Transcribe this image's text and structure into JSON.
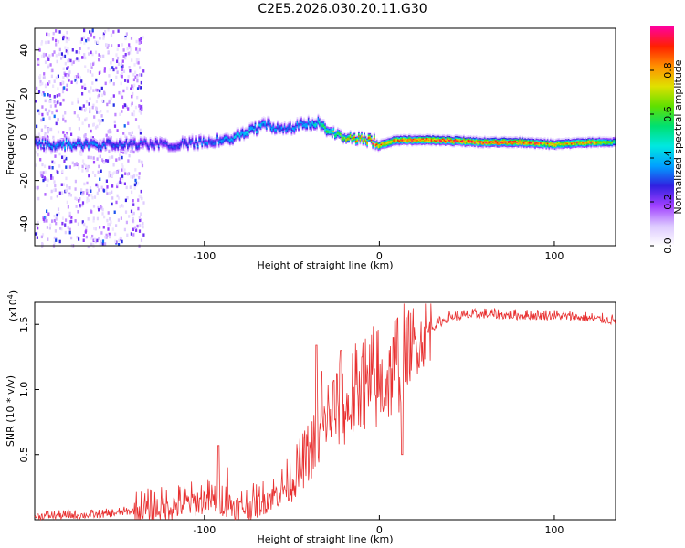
{
  "title": "C2E5.2026.030.20.11.G30",
  "chart_data": [
    {
      "type": "heatmap",
      "xlabel": "Height of straight line (km)",
      "ylabel": "Frequency (Hz)",
      "xlim": [
        -197,
        135
      ],
      "ylim": [
        -50,
        50
      ],
      "x_ticks": [
        -100,
        0,
        100
      ],
      "y_ticks": [
        -40,
        -20,
        0,
        20,
        40
      ],
      "colorbar": {
        "label": "Normalized spectral amplitude",
        "range": [
          0,
          1
        ],
        "ticks": [
          0.0,
          0.2,
          0.4,
          0.6,
          0.8
        ],
        "colors": [
          "#ffffff",
          "#dcc8ff",
          "#a040ff",
          "#3020e0",
          "#00a0ff",
          "#00e8e0",
          "#00e070",
          "#60e000",
          "#e0e000",
          "#ff9000",
          "#ff2000",
          "#ff00a0"
        ]
      },
      "ridge": {
        "x": [
          -197,
          -180,
          -160,
          -140,
          -120,
          -100,
          -85,
          -75,
          -65,
          -55,
          -45,
          -35,
          -25,
          -15,
          -5,
          0,
          10,
          30,
          60,
          80,
          100,
          120,
          135
        ],
        "freq": [
          -3,
          -3,
          -3,
          -3,
          -3,
          -2,
          0,
          3,
          6,
          4,
          6,
          7,
          1,
          0,
          -1,
          -3,
          -1,
          -1,
          -2,
          -2,
          -3,
          -2,
          -2
        ],
        "amplitude": [
          0.35,
          0.4,
          0.35,
          0.32,
          0.3,
          0.35,
          0.4,
          0.45,
          0.4,
          0.35,
          0.4,
          0.5,
          0.7,
          0.85,
          0.9,
          0.85,
          0.9,
          0.95,
          0.98,
          0.98,
          0.85,
          0.9,
          0.6
        ]
      }
    },
    {
      "type": "line",
      "xlabel": "Height of straight line (km)",
      "ylabel": "SNR (10 * v/v)",
      "yscale_label": "(x10",
      "yscale_exp": "4",
      "yscale_close": ")",
      "xlim": [
        -197,
        135
      ],
      "ylim": [
        0,
        1.67
      ],
      "x_ticks": [
        -100,
        0,
        100
      ],
      "y_ticks": [
        0.5,
        1.0,
        1.5
      ],
      "y_tick_labels": [
        "0.5",
        "1.0",
        "1.5"
      ],
      "color": "#e83030",
      "envelope": {
        "x": [
          -197,
          -160,
          -140,
          -120,
          -100,
          -90,
          -80,
          -70,
          -60,
          -50,
          -40,
          -35,
          -30,
          -20,
          -10,
          0,
          10,
          20,
          30,
          40,
          60,
          80,
          100,
          120,
          135
        ],
        "y": [
          0.03,
          0.04,
          0.07,
          0.11,
          0.16,
          0.15,
          0.1,
          0.13,
          0.2,
          0.3,
          0.5,
          0.6,
          0.8,
          0.85,
          1.0,
          1.05,
          1.18,
          1.35,
          1.48,
          1.56,
          1.58,
          1.57,
          1.57,
          1.55,
          1.53
        ]
      },
      "spikes": [
        {
          "x": -92,
          "y": 0.57
        },
        {
          "x": -87,
          "y": 0.4
        },
        {
          "x": -36,
          "y": 1.34
        },
        {
          "x": -33,
          "y": 1.14
        },
        {
          "x": -26,
          "y": 1.07
        },
        {
          "x": -22,
          "y": 1.3
        },
        {
          "x": -10,
          "y": 1.25
        },
        {
          "x": 8,
          "y": 1.4
        },
        {
          "x": 13,
          "y": 0.5
        }
      ]
    }
  ]
}
